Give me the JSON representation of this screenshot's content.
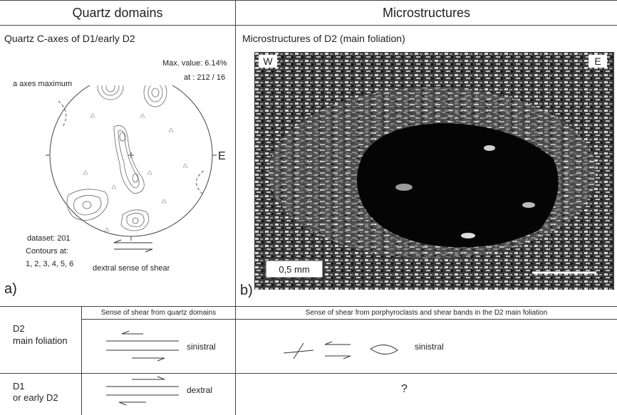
{
  "headers": {
    "left": "Quartz domains",
    "right": "Microstructures"
  },
  "panel_a": {
    "title": "Quartz C-axes of D1/early D2",
    "max_value": "Max. value: 6.14%",
    "max_at": "at : 212 / 16",
    "a_axes_label": "a axes maximum",
    "east_label": "E",
    "dataset": "dataset: 201",
    "contours_label": "Contours at:",
    "contours_values": "1, 2, 3, 4, 5, 6",
    "shear_label": "dextral sense of shear",
    "panel_letter": "a)"
  },
  "panel_b": {
    "title": "Microstructures of D2 (main foliation)",
    "west_label": "W",
    "east_label": "E",
    "scale_label": "0,5 mm",
    "panel_letter": "b)"
  },
  "table": {
    "col1_header": "Sense of shear from quartz domains",
    "col2_header": "Sense of shear from porphyroclasts and shear bands in the D2 main foliation",
    "row1": {
      "label_line1": "D2",
      "label_line2": "main foliation",
      "quartz_sense": "sinistral",
      "porph_sense": "sinistral"
    },
    "row2": {
      "label_line1": "D1",
      "label_line2": "or early D2",
      "quartz_sense": "dextral",
      "porph_sense": "?"
    }
  }
}
